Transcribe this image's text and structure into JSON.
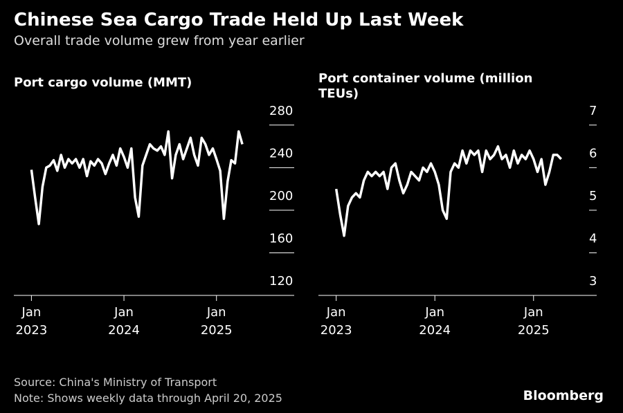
{
  "header": {
    "title": "Chinese Sea Cargo Trade Held Up Last Week",
    "subtitle": "Overall trade volume grew from year earlier"
  },
  "footer": {
    "source": "Source: China's Ministry of Transport",
    "note": "Note: Shows weekly data through April 20, 2025",
    "brand": "Bloomberg"
  },
  "chart_data": [
    {
      "type": "line",
      "title": "Port cargo volume (MMT)",
      "color": "#ffffff",
      "x": [
        2023.0,
        2023.04,
        2023.08,
        2023.12,
        2023.16,
        2023.2,
        2023.24,
        2023.28,
        2023.32,
        2023.36,
        2023.4,
        2023.44,
        2023.48,
        2023.52,
        2023.56,
        2023.6,
        2023.64,
        2023.68,
        2023.72,
        2023.76,
        2023.8,
        2023.84,
        2023.88,
        2023.92,
        2023.96,
        2024.0,
        2024.04,
        2024.08,
        2024.12,
        2024.16,
        2024.2,
        2024.24,
        2024.28,
        2024.32,
        2024.36,
        2024.4,
        2024.44,
        2024.48,
        2024.52,
        2024.56,
        2024.6,
        2024.64,
        2024.68,
        2024.72,
        2024.76,
        2024.8,
        2024.84,
        2024.88,
        2024.92,
        2024.96,
        2025.0,
        2025.04,
        2025.08,
        2025.12,
        2025.16,
        2025.2,
        2025.24,
        2025.28
      ],
      "values": [
        238,
        212,
        187,
        222,
        240,
        242,
        247,
        237,
        252,
        240,
        248,
        244,
        248,
        240,
        248,
        232,
        246,
        242,
        248,
        244,
        234,
        244,
        252,
        242,
        258,
        250,
        240,
        258,
        212,
        194,
        242,
        252,
        262,
        258,
        256,
        260,
        252,
        274,
        230,
        252,
        262,
        248,
        258,
        268,
        252,
        242,
        268,
        262,
        252,
        258,
        248,
        237,
        192,
        227,
        247,
        244,
        274,
        262
      ],
      "xlim": [
        2022.81,
        2025.84
      ],
      "ylim": [
        120,
        300
      ],
      "xticks": [
        {
          "value": 2023,
          "label": "Jan 2023"
        },
        {
          "value": 2024,
          "label": "Jan 2024"
        },
        {
          "value": 2025,
          "label": "Jan 2025"
        }
      ],
      "yticks": [
        120,
        160,
        200,
        240,
        280
      ]
    },
    {
      "type": "line",
      "title": "Port container volume (million TEUs)",
      "color": "#ffffff",
      "x": [
        2023.0,
        2023.04,
        2023.08,
        2023.12,
        2023.16,
        2023.2,
        2023.24,
        2023.28,
        2023.32,
        2023.36,
        2023.4,
        2023.44,
        2023.48,
        2023.52,
        2023.56,
        2023.6,
        2023.64,
        2023.68,
        2023.72,
        2023.76,
        2023.8,
        2023.84,
        2023.88,
        2023.92,
        2023.96,
        2024.0,
        2024.04,
        2024.08,
        2024.12,
        2024.16,
        2024.2,
        2024.24,
        2024.28,
        2024.32,
        2024.36,
        2024.4,
        2024.44,
        2024.48,
        2024.52,
        2024.56,
        2024.6,
        2024.64,
        2024.68,
        2024.72,
        2024.76,
        2024.8,
        2024.84,
        2024.88,
        2024.92,
        2024.96,
        2025.0,
        2025.04,
        2025.08,
        2025.12,
        2025.16,
        2025.2,
        2025.24,
        2025.28
      ],
      "values": [
        5.5,
        4.9,
        4.4,
        5.1,
        5.3,
        5.4,
        5.3,
        5.7,
        5.9,
        5.8,
        5.9,
        5.8,
        5.9,
        5.5,
        6.0,
        6.1,
        5.7,
        5.4,
        5.6,
        5.9,
        5.8,
        5.7,
        6.0,
        5.9,
        6.1,
        5.9,
        5.6,
        5.0,
        4.8,
        5.9,
        6.1,
        6.0,
        6.4,
        6.1,
        6.4,
        6.3,
        6.4,
        5.9,
        6.4,
        6.2,
        6.3,
        6.5,
        6.2,
        6.3,
        6.0,
        6.4,
        6.1,
        6.3,
        6.2,
        6.4,
        6.2,
        5.9,
        6.2,
        5.6,
        5.9,
        6.3,
        6.3,
        6.2
      ],
      "xlim": [
        2022.82,
        2025.64
      ],
      "ylim": [
        3,
        7.5
      ],
      "xticks": [
        {
          "value": 2023,
          "label": "Jan 2023"
        },
        {
          "value": 2024,
          "label": "Jan 2024"
        },
        {
          "value": 2025,
          "label": "Jan 2025"
        }
      ],
      "yticks": [
        3,
        4,
        5,
        6,
        7
      ]
    }
  ]
}
